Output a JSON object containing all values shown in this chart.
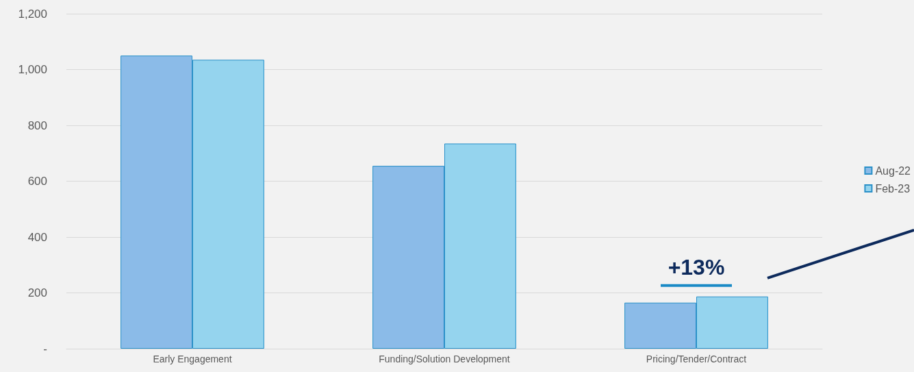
{
  "chart_data": {
    "type": "bar",
    "categories": [
      "Early Engagement",
      "Funding/Solution Development",
      "Pricing/Tender/Contract"
    ],
    "series": [
      {
        "name": "Aug-22",
        "color": "#8bbbe8",
        "values": [
          1050,
          655,
          165
        ]
      },
      {
        "name": "Feb-23",
        "color": "#95d4ee",
        "values": [
          1035,
          735,
          187
        ]
      }
    ],
    "ylim": [
      0,
      1200
    ],
    "yticks": [
      {
        "value": 0,
        "label": "-"
      },
      200,
      400,
      600,
      800,
      {
        "value": 1000,
        "label": "1,000"
      },
      {
        "value": 1200,
        "label": "1,200"
      }
    ],
    "grid": "y",
    "legend": "right",
    "annotations": [
      "+13%"
    ]
  }
}
